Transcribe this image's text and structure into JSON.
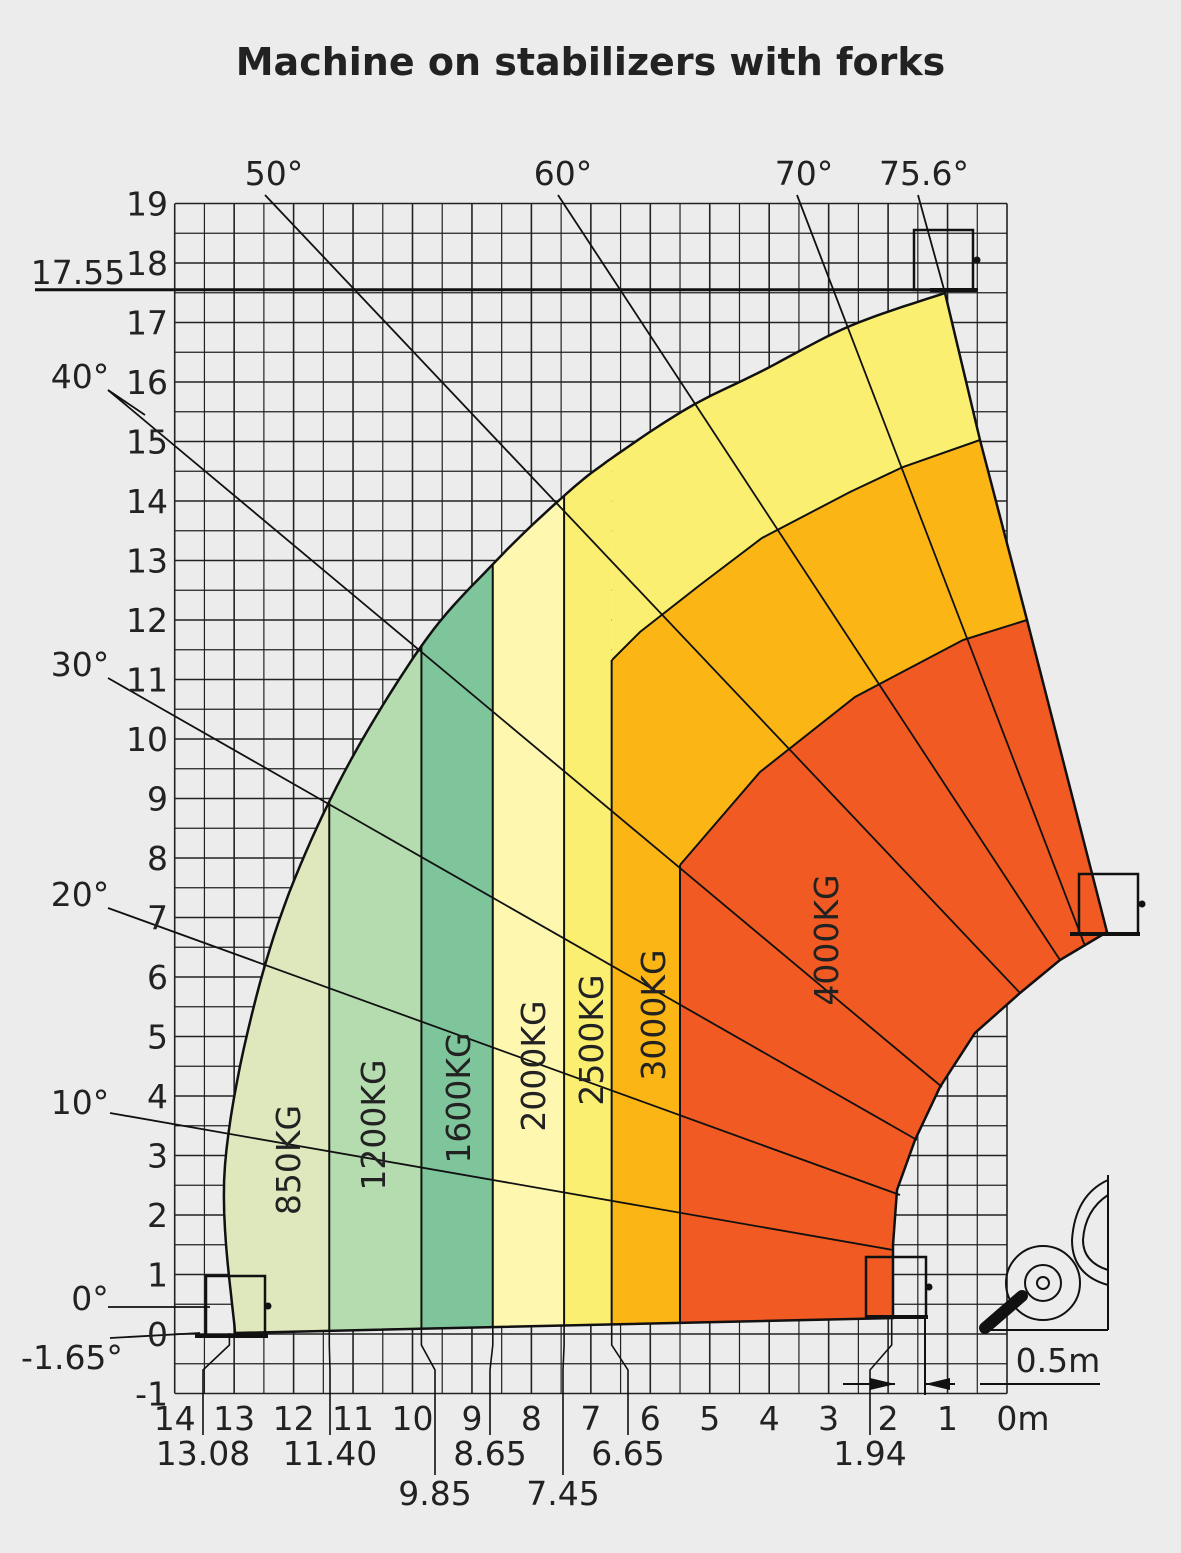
{
  "chart_data": {
    "type": "load-chart",
    "title": "Machine on stabilizers with forks",
    "xlabel": "",
    "ylabel": "",
    "x_unit": "m",
    "grid": true,
    "xlim": [
      0,
      14
    ],
    "ylim": [
      -1,
      19
    ],
    "x_ticks": [
      "14",
      "13",
      "12",
      "11",
      "10",
      "9",
      "8",
      "7",
      "6",
      "5",
      "4",
      "3",
      "2",
      "1",
      "0m"
    ],
    "y_ticks": [
      "-1",
      "0",
      "1",
      "2",
      "3",
      "4",
      "5",
      "6",
      "7",
      "8",
      "9",
      "10",
      "11",
      "12",
      "13",
      "14",
      "15",
      "16",
      "17",
      "18",
      "19"
    ],
    "max_height": {
      "label": "17.55",
      "value": 17.55
    },
    "zone_boundaries": [
      {
        "label": "13.08",
        "value": 13.08
      },
      {
        "label": "11.40",
        "value": 11.4
      },
      {
        "label": "9.85",
        "value": 9.85
      },
      {
        "label": "8.65",
        "value": 8.65
      },
      {
        "label": "7.45",
        "value": 7.45
      },
      {
        "label": "6.65",
        "value": 6.65
      },
      {
        "label": "1.94",
        "value": 1.94
      }
    ],
    "angles": [
      {
        "label": "-1.65°",
        "value": -1.65
      },
      {
        "label": "0°",
        "value": 0
      },
      {
        "label": "10°",
        "value": 10
      },
      {
        "label": "20°",
        "value": 20
      },
      {
        "label": "30°",
        "value": 30
      },
      {
        "label": "40°",
        "value": 40
      },
      {
        "label": "50°",
        "value": 50
      },
      {
        "label": "60°",
        "value": 60
      },
      {
        "label": "70°",
        "value": 70
      },
      {
        "label": "75.6°",
        "value": 75.6
      }
    ],
    "zones": [
      {
        "label": "850KG",
        "load_kg": 850,
        "from_m": 13.08,
        "to_m": 11.4,
        "color": "#dfe8bd"
      },
      {
        "label": "1200KG",
        "load_kg": 1200,
        "from_m": 11.4,
        "to_m": 9.85,
        "color": "#b5dcae"
      },
      {
        "label": "1600KG",
        "load_kg": 1600,
        "from_m": 9.85,
        "to_m": 8.65,
        "color": "#7fc59b"
      },
      {
        "label": "2000KG",
        "load_kg": 2000,
        "from_m": 8.65,
        "to_m": 7.45,
        "color": "#fdf7b0"
      },
      {
        "label": "2500KG",
        "load_kg": 2500,
        "from_m": 7.45,
        "to_m": 6.65,
        "color": "#fbef72"
      },
      {
        "label": "3000KG",
        "load_kg": 3000,
        "from_m": 6.65,
        "color": "#fbb615"
      },
      {
        "label": "4000KG",
        "load_kg": 4000,
        "color": "#f15a22"
      }
    ],
    "scale_bar": {
      "label": "0.5m",
      "value": 0.5
    }
  }
}
